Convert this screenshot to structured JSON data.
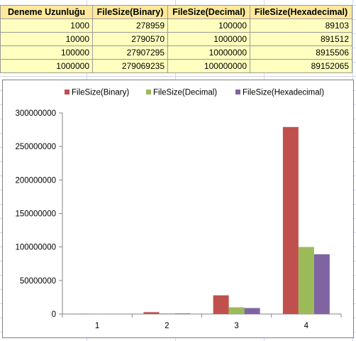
{
  "table": {
    "headers": [
      "Deneme Uzunluğu",
      "FileSize(Binary)",
      "FileSize(Decimal)",
      "FileSize(Hexadecimal)"
    ],
    "rows": [
      [
        "1000",
        "278959",
        "100000",
        "89103"
      ],
      [
        "10000",
        "2790570",
        "1000000",
        "891512"
      ],
      [
        "100000",
        "27907295",
        "10000000",
        "8915506"
      ],
      [
        "1000000",
        "279069235",
        "100000000",
        "89152065"
      ]
    ]
  },
  "chart_data": {
    "type": "bar",
    "categories": [
      "1",
      "2",
      "3",
      "4"
    ],
    "series": [
      {
        "name": "FileSize(Binary)",
        "color": "#c0504d",
        "values": [
          278959,
          2790570,
          27907295,
          279069235
        ]
      },
      {
        "name": "FileSize(Decimal)",
        "color": "#9bbb59",
        "values": [
          100000,
          1000000,
          10000000,
          100000000
        ]
      },
      {
        "name": "FileSize(Hexadecimal)",
        "color": "#8064a2",
        "values": [
          89103,
          891512,
          8915506,
          89152065
        ]
      }
    ],
    "ylim": [
      0,
      300000000
    ],
    "yticks": [
      "0",
      "50000000",
      "100000000",
      "150000000",
      "200000000",
      "250000000",
      "300000000"
    ],
    "title": "",
    "xlabel": "",
    "ylabel": "",
    "legend": "top",
    "grid": false
  }
}
